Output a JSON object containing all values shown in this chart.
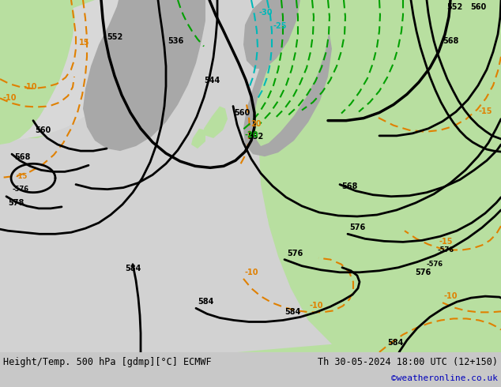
{
  "title_left": "Height/Temp. 500 hPa [gdmp][°C] ECMWF",
  "title_right": "Th 30-05-2024 18:00 UTC (12+150)",
  "credit": "©weatheronline.co.uk",
  "bg_ocean": "#d2d2d2",
  "bg_land_green": "#b8dfa0",
  "bg_mountain": "#a8a8a8",
  "color_height": "#000000",
  "color_temp_orange": "#e08000",
  "color_temp_cyan": "#00b8b8",
  "color_temp_green": "#00a000",
  "credit_color": "#0000bb",
  "figsize": [
    6.34,
    4.9
  ],
  "dpi": 100
}
